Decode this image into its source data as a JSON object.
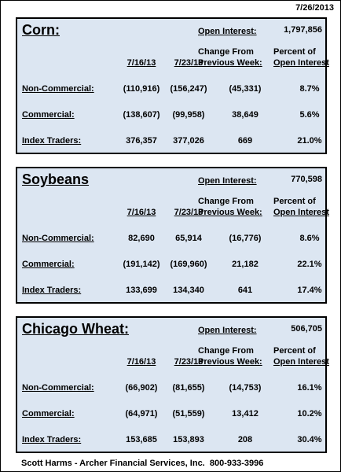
{
  "date": "7/26/2013",
  "panels": [
    {
      "title": "Corn:",
      "open_interest_label": "Open Interest:",
      "open_interest": "1,797,856",
      "columns": [
        "7/16/13",
        "7/23/13",
        [
          "Change From",
          "Previous Week:"
        ],
        [
          "Percent of",
          "Open Interest"
        ]
      ],
      "rows": [
        {
          "label": "Non-Commercial:",
          "values": [
            "(110,916)",
            "(156,247)",
            "(45,331)",
            "8.7%"
          ]
        },
        {
          "label": "Commercial:",
          "values": [
            "(138,607)",
            "(99,958)",
            "38,649",
            "5.6%"
          ]
        },
        {
          "label": "Index Traders:",
          "values": [
            "376,357",
            "377,026",
            "669",
            "21.0%"
          ]
        }
      ]
    },
    {
      "title": "Soybeans",
      "open_interest_label": "Open Interest:",
      "open_interest": "770,598",
      "columns": [
        "7/16/13",
        "7/23/13",
        [
          "Change From",
          "Previous Week:"
        ],
        [
          "Percent of",
          "Open Interest"
        ]
      ],
      "rows": [
        {
          "label": "Non-Commercial:",
          "values": [
            "82,690",
            "65,914",
            "(16,776)",
            "8.6%"
          ]
        },
        {
          "label": "Commercial:",
          "values": [
            "(191,142)",
            "(169,960)",
            "21,182",
            "22.1%"
          ]
        },
        {
          "label": "Index Traders:",
          "values": [
            "133,699",
            "134,340",
            "641",
            "17.4%"
          ]
        }
      ]
    },
    {
      "title": "Chicago Wheat:",
      "open_interest_label": "Open Interest:",
      "open_interest": "506,705",
      "columns": [
        "7/16/13",
        "7/23/13",
        [
          "Change From",
          "Previous Week:"
        ],
        [
          "Percent of",
          "Open Interest"
        ]
      ],
      "rows": [
        {
          "label": "Non-Commercial:",
          "values": [
            "(66,902)",
            "(81,655)",
            "(14,753)",
            "16.1%"
          ]
        },
        {
          "label": "Commercial:",
          "values": [
            "(64,971)",
            "(51,559)",
            "13,412",
            "10.2%"
          ]
        },
        {
          "label": "Index Traders:",
          "values": [
            "153,685",
            "153,893",
            "208",
            "30.4%"
          ]
        }
      ]
    }
  ],
  "footer": "Scott Harms - Archer Financial Services, Inc.  800-933-3996"
}
